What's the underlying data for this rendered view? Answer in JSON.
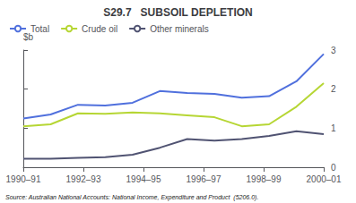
{
  "chart_data": {
    "type": "line",
    "title": "S29.7   SUBSOIL DEPLETION",
    "ylabel": "$b",
    "annotations": [
      "Source: Australian National Accounts: National Income, Expenditure and Product  (5206.0)."
    ],
    "x": [
      0,
      0.9090909090909091,
      1.8181818181818181,
      2.727272727272727,
      3.6363636363636362,
      4.545454545454545,
      5.454545454545454,
      6.363636363636363,
      7.2727272727272725,
      8.181818181818182,
      9.09090909090909,
      10
    ],
    "series": [
      {
        "name": "Total",
        "values": [
          1.25,
          1.35,
          1.6,
          1.58,
          1.65,
          1.95,
          1.9,
          1.88,
          1.78,
          1.82,
          2.2,
          2.9
        ]
      },
      {
        "name": "Crude oil",
        "values": [
          1.05,
          1.1,
          1.38,
          1.37,
          1.4,
          1.38,
          1.33,
          1.28,
          1.05,
          1.1,
          1.55,
          2.15
        ]
      },
      {
        "name": "Other minerals",
        "values": [
          0.22,
          0.22,
          0.24,
          0.26,
          0.32,
          0.5,
          0.72,
          0.68,
          0.72,
          0.8,
          0.92,
          0.85
        ]
      }
    ],
    "xlim": [
      0,
      10
    ],
    "xticks": [
      {
        "value": 0,
        "label": "1990–91"
      },
      {
        "value": 2,
        "label": "1992–93"
      },
      {
        "value": 4,
        "label": "1994–95"
      },
      {
        "value": 6,
        "label": "1996–97"
      },
      {
        "value": 8,
        "label": "1998–99"
      },
      {
        "value": 10,
        "label": "2000–01"
      }
    ],
    "ylim": [
      0,
      3
    ],
    "yticks": [
      0,
      1,
      2,
      3
    ],
    "grid": false,
    "legend": "upper left"
  }
}
